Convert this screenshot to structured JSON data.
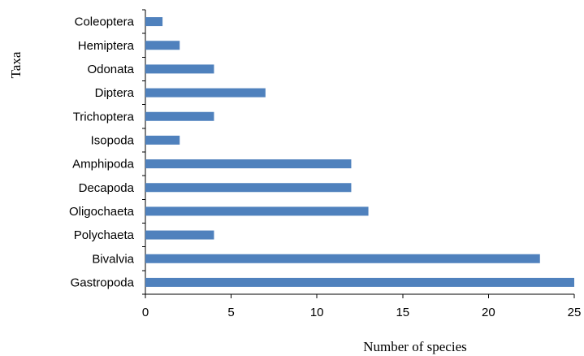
{
  "chart_data": {
    "type": "bar",
    "orientation": "horizontal",
    "categories": [
      "Gastropoda",
      "Bivalvia",
      "Polychaeta",
      "Oligochaeta",
      "Decapoda",
      "Amphipoda",
      "Isopoda",
      "Trichoptera",
      "Diptera",
      "Odonata",
      "Hemiptera",
      "Coleoptera"
    ],
    "values": [
      25,
      23,
      4,
      13,
      12,
      12,
      2,
      4,
      7,
      4,
      2,
      1
    ],
    "xlabel": "Number of species",
    "ylabel": "Taxa",
    "xlim": [
      0,
      25
    ],
    "xticks": [
      0,
      5,
      10,
      15,
      20,
      25
    ],
    "grid": false,
    "legend": false,
    "bar_color": "#4f81bd"
  }
}
